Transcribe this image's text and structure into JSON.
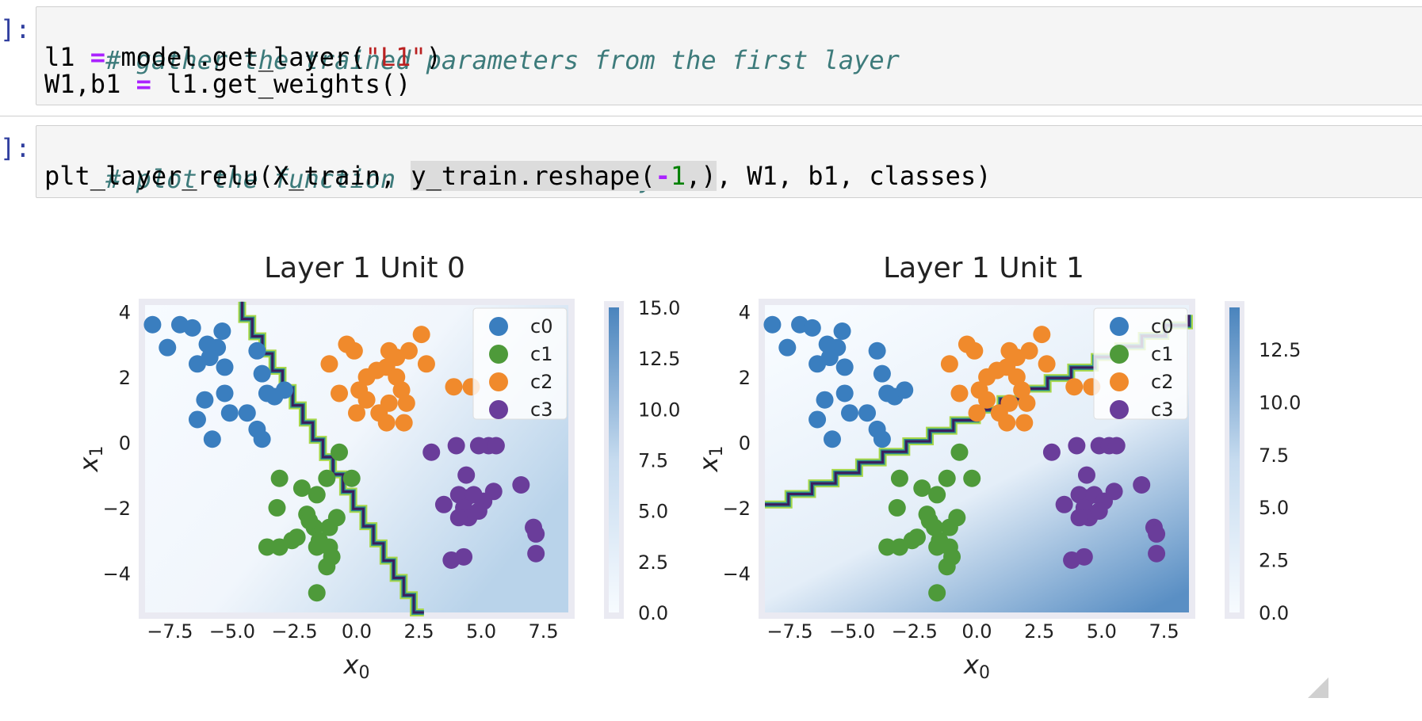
{
  "cells": [
    {
      "prompt": "]:",
      "comment": "# gather the trained parameters from the first layer",
      "line2": {
        "lhs": "l1 ",
        "op": "=",
        "call": " model.get_layer(",
        "str": "\"L1\"",
        "close": ")"
      },
      "line3": {
        "lhs": "W1,b1 ",
        "op": "=",
        "rest": " l1.get_weights()"
      }
    },
    {
      "prompt": "]:",
      "comment": "# plot the function of the first layer",
      "line2": {
        "pre": "plt_layer_relu(X_train, ",
        "hl_pre": "y_train.reshape(",
        "neg": "-",
        "num": "1",
        "hl_post": ",)",
        "post": ", W1, b1, classes)"
      }
    }
  ],
  "chart_data": [
    {
      "type": "scatter",
      "title": "Layer 1 Unit 0",
      "xlabel": "x0",
      "ylabel": "x1",
      "xlim": [
        -8.5,
        8.5
      ],
      "ylim": [
        -5.2,
        4.2
      ],
      "xticks": [
        "−7.5",
        "−5.0",
        "−2.5",
        "0.0",
        "2.5",
        "5.0",
        "7.5"
      ],
      "yticks": [
        "−4",
        "−2",
        "0",
        "2",
        "4"
      ],
      "colorbar_ticks": [
        "0.0",
        "2.5",
        "5.0",
        "7.5",
        "10.0",
        "12.5",
        "15.0"
      ],
      "colorbar_range": [
        0,
        15
      ],
      "boundary": [
        [
          -4.6,
          4.3
        ],
        [
          2.7,
          -5.2
        ]
      ],
      "legend": [
        "c0",
        "c1",
        "c2",
        "c3"
      ]
    },
    {
      "type": "scatter",
      "title": "Layer 1 Unit 1",
      "xlabel": "x0",
      "ylabel": "x1",
      "xlim": [
        -8.5,
        8.5
      ],
      "ylim": [
        -5.2,
        4.2
      ],
      "xticks": [
        "−7.5",
        "−5.0",
        "−2.5",
        "0.0",
        "2.5",
        "5.0",
        "7.5"
      ],
      "yticks": [
        "−4",
        "−2",
        "0",
        "2",
        "4"
      ],
      "colorbar_ticks": [
        "0.0",
        "2.5",
        "5.0",
        "7.5",
        "10.0",
        "12.5"
      ],
      "colorbar_range": [
        0,
        14.5
      ],
      "boundary": [
        [
          -8.5,
          -1.9
        ],
        [
          8.5,
          3.9
        ]
      ],
      "legend": [
        "c0",
        "c1",
        "c2",
        "c3"
      ]
    }
  ],
  "series": [
    {
      "name": "c0",
      "color": "#3a7ebf",
      "points": [
        [
          -8.2,
          3.6
        ],
        [
          -7.1,
          3.6
        ],
        [
          -6.6,
          3.5
        ],
        [
          -5.4,
          3.4
        ],
        [
          -7.6,
          2.9
        ],
        [
          -6.0,
          3.0
        ],
        [
          -5.6,
          2.9
        ],
        [
          -5.9,
          2.6
        ],
        [
          -6.4,
          2.4
        ],
        [
          -5.3,
          2.3
        ],
        [
          -4.0,
          2.8
        ],
        [
          -3.8,
          2.1
        ],
        [
          -6.1,
          1.3
        ],
        [
          -5.3,
          1.5
        ],
        [
          -6.4,
          0.7
        ],
        [
          -5.1,
          0.9
        ],
        [
          -4.4,
          0.9
        ],
        [
          -3.6,
          1.5
        ],
        [
          -3.3,
          1.4
        ],
        [
          -2.9,
          1.6
        ],
        [
          -4.0,
          0.4
        ],
        [
          -3.8,
          0.1
        ],
        [
          -5.8,
          0.1
        ]
      ]
    },
    {
      "name": "c1",
      "color": "#4e9a3a",
      "points": [
        [
          -0.7,
          -0.3
        ],
        [
          -0.2,
          -1.1
        ],
        [
          -3.1,
          -1.1
        ],
        [
          -3.2,
          -2.0
        ],
        [
          -2.2,
          -1.4
        ],
        [
          -1.2,
          -1.1
        ],
        [
          -1.6,
          -1.6
        ],
        [
          -2.0,
          -2.2
        ],
        [
          -1.7,
          -2.6
        ],
        [
          -2.4,
          -2.9
        ],
        [
          -1.9,
          -2.4
        ],
        [
          -0.8,
          -2.3
        ],
        [
          -1.1,
          -2.6
        ],
        [
          -1.6,
          -3.2
        ],
        [
          -2.6,
          -3.0
        ],
        [
          -1.5,
          -3.0
        ],
        [
          -1.1,
          -3.2
        ],
        [
          -3.1,
          -3.2
        ],
        [
          -3.6,
          -3.2
        ],
        [
          -1.0,
          -3.5
        ],
        [
          -1.2,
          -3.8
        ],
        [
          -1.6,
          -4.6
        ]
      ]
    },
    {
      "name": "c2",
      "color": "#f08a2c",
      "points": [
        [
          -0.4,
          3.0
        ],
        [
          -0.1,
          2.8
        ],
        [
          1.3,
          2.8
        ],
        [
          2.1,
          2.8
        ],
        [
          2.6,
          3.3
        ],
        [
          1.6,
          2.6
        ],
        [
          1.2,
          2.3
        ],
        [
          2.8,
          2.4
        ],
        [
          -1.1,
          2.4
        ],
        [
          0.4,
          2.0
        ],
        [
          1.6,
          2.0
        ],
        [
          0.8,
          2.2
        ],
        [
          -0.7,
          1.5
        ],
        [
          1.8,
          1.6
        ],
        [
          0.1,
          1.6
        ],
        [
          0.4,
          1.3
        ],
        [
          1.3,
          1.2
        ],
        [
          2.0,
          1.2
        ],
        [
          0.9,
          0.9
        ],
        [
          0.0,
          0.9
        ],
        [
          1.2,
          0.6
        ],
        [
          1.9,
          0.6
        ],
        [
          3.9,
          1.7
        ],
        [
          4.6,
          1.7
        ]
      ]
    },
    {
      "name": "c3",
      "color": "#6a3d9a",
      "points": [
        [
          3.0,
          -0.3
        ],
        [
          4.0,
          -0.1
        ],
        [
          4.9,
          -0.1
        ],
        [
          5.3,
          -0.1
        ],
        [
          5.6,
          -0.1
        ],
        [
          4.4,
          -1.0
        ],
        [
          3.5,
          -1.9
        ],
        [
          4.1,
          -1.6
        ],
        [
          4.4,
          -1.7
        ],
        [
          4.7,
          -1.6
        ],
        [
          5.1,
          -1.8
        ],
        [
          5.5,
          -1.5
        ],
        [
          4.3,
          -2.0
        ],
        [
          4.5,
          -2.3
        ],
        [
          4.9,
          -2.1
        ],
        [
          4.1,
          -2.3
        ],
        [
          6.6,
          -1.3
        ],
        [
          7.1,
          -2.6
        ],
        [
          7.2,
          -2.8
        ],
        [
          7.2,
          -3.4
        ],
        [
          3.8,
          -3.6
        ],
        [
          4.3,
          -3.5
        ]
      ]
    }
  ]
}
